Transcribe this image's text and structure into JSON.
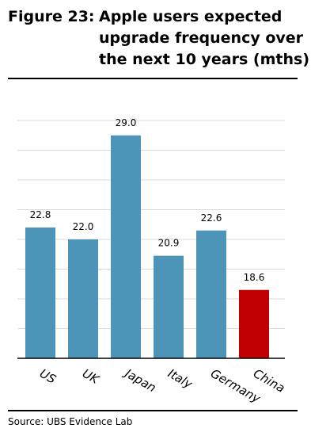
{
  "figure": {
    "label": "Figure 23:",
    "title": "Apple users expected upgrade frequency over the next 10 years (mths)",
    "source": "Source: UBS Evidence Lab"
  },
  "chart_data": {
    "type": "bar",
    "title": "Apple users expected upgrade frequency over the next 10 years (mths)",
    "xlabel": "",
    "ylabel": "",
    "categories": [
      "US",
      "UK",
      "Japan",
      "Italy",
      "Germany",
      "China"
    ],
    "values": [
      22.8,
      22.0,
      29.0,
      20.9,
      22.6,
      18.6
    ],
    "value_labels": [
      "22.8",
      "22.0",
      "29.0",
      "20.9",
      "22.6",
      "18.6"
    ],
    "ylim": [
      14,
      30
    ],
    "grid": true,
    "legend": "none",
    "colors": {
      "default": "#4d95b8",
      "highlight": "#c00000",
      "grid": "#d9d9d9",
      "axis": "#000000"
    },
    "highlight_category": "China"
  }
}
